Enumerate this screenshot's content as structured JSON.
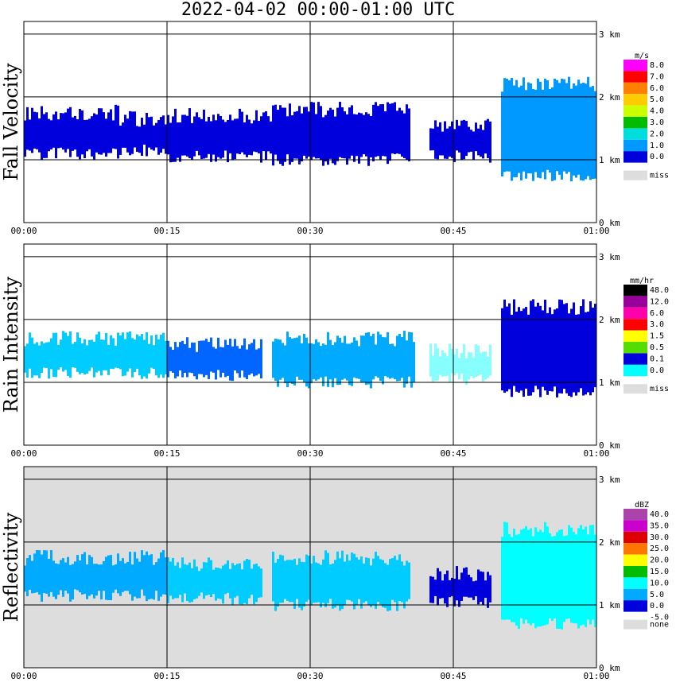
{
  "title": "2022-04-02   00:00-01:00 UTC",
  "chart_data": [
    {
      "type": "heatmap",
      "ylabel": "Fall Velocity",
      "xticks": [
        "00:00",
        "00:15",
        "00:30",
        "00:45",
        "01:00"
      ],
      "yticks": [
        "0 km",
        "1 km",
        "2 km",
        "3 km"
      ],
      "ylim": [
        0,
        3.2
      ],
      "xlim": [
        0,
        60
      ],
      "background": "#ffffff",
      "colorbar": {
        "unit": "m/s",
        "levels": [
          "8.0",
          "7.0",
          "6.0",
          "5.0",
          "4.0",
          "3.0",
          "2.0",
          "1.0",
          "0.0"
        ],
        "colors": [
          "#ff00ff",
          "#ff0000",
          "#ff7f00",
          "#ffcc00",
          "#ccff00",
          "#00bb00",
          "#00dddd",
          "#0099ff",
          "#0000dd"
        ],
        "miss_label": "miss"
      },
      "echo_bands": [
        {
          "t0": 0,
          "t1": 10,
          "zlo": 1.1,
          "zhi": 1.75,
          "color": "#0000dd"
        },
        {
          "t0": 10,
          "t1": 15,
          "zlo": 1.15,
          "zhi": 1.65,
          "color": "#0000dd"
        },
        {
          "t0": 15,
          "t1": 26,
          "zlo": 1.05,
          "zhi": 1.7,
          "color": "#0000dd"
        },
        {
          "t0": 26,
          "t1": 40.5,
          "zlo": 1.0,
          "zhi": 1.8,
          "color": "#0000dd"
        },
        {
          "t0": 42.5,
          "t1": 49,
          "zlo": 1.05,
          "zhi": 1.55,
          "color": "#0000dd"
        },
        {
          "t0": 50,
          "t1": 60,
          "zlo": 0.75,
          "zhi": 2.2,
          "color": "#0099ff"
        }
      ]
    },
    {
      "type": "heatmap",
      "ylabel": "Rain Intensity",
      "xticks": [
        "00:00",
        "00:15",
        "00:30",
        "00:45",
        "01:00"
      ],
      "yticks": [
        "0 km",
        "1 km",
        "2 km",
        "3 km"
      ],
      "ylim": [
        0,
        3.2
      ],
      "xlim": [
        0,
        60
      ],
      "background": "#ffffff",
      "colorbar": {
        "unit": "mm/hr",
        "levels": [
          "48.0",
          "12.0",
          "6.0",
          "3.0",
          "1.5",
          "0.5",
          "0.1",
          "0.0"
        ],
        "colors": [
          "#000000",
          "#990099",
          "#ff00aa",
          "#ff0000",
          "#ffff00",
          "#55dd00",
          "#0000dd",
          "#00ffff"
        ],
        "miss_label": "miss"
      },
      "echo_bands": [
        {
          "t0": 0,
          "t1": 15,
          "zlo": 1.15,
          "zhi": 1.7,
          "color": "#00ccff"
        },
        {
          "t0": 15,
          "t1": 25,
          "zlo": 1.1,
          "zhi": 1.6,
          "color": "#0066ff"
        },
        {
          "t0": 26,
          "t1": 41,
          "zlo": 1.0,
          "zhi": 1.7,
          "color": "#00aaff"
        },
        {
          "t0": 42.5,
          "t1": 49,
          "zlo": 1.05,
          "zhi": 1.5,
          "color": "#88ffff"
        },
        {
          "t0": 50,
          "t1": 60,
          "zlo": 0.85,
          "zhi": 2.2,
          "color": "#0000dd"
        }
      ]
    },
    {
      "type": "heatmap",
      "ylabel": "Reflectivity",
      "xticks": [
        "00:00",
        "00:15",
        "00:30",
        "00:45",
        "01:00"
      ],
      "yticks": [
        "0 km",
        "1 km",
        "2 km",
        "3 km"
      ],
      "ylim": [
        0,
        3.2
      ],
      "xlim": [
        0,
        60
      ],
      "background": "#dddddd",
      "colorbar": {
        "unit": "dBZ",
        "levels": [
          "40.0",
          "35.0",
          "30.0",
          "25.0",
          "20.0",
          "15.0",
          "10.0",
          "5.0",
          "0.0",
          "-5.0"
        ],
        "colors": [
          "#aa44aa",
          "#cc00cc",
          "#dd0000",
          "#ff7700",
          "#ffff00",
          "#00bb00",
          "#00ffff",
          "#00aaff",
          "#0000dd"
        ],
        "miss_label": "none"
      },
      "echo_bands": [
        {
          "t0": 0,
          "t1": 15,
          "zlo": 1.15,
          "zhi": 1.75,
          "color": "#00aaff"
        },
        {
          "t0": 15,
          "t1": 25,
          "zlo": 1.1,
          "zhi": 1.65,
          "color": "#00ccff"
        },
        {
          "t0": 26,
          "t1": 40.5,
          "zlo": 1.0,
          "zhi": 1.75,
          "color": "#00ccff"
        },
        {
          "t0": 42.5,
          "t1": 49,
          "zlo": 1.05,
          "zhi": 1.5,
          "color": "#0000dd"
        },
        {
          "t0": 50,
          "t1": 60,
          "zlo": 0.7,
          "zhi": 2.2,
          "color": "#00ffff"
        }
      ]
    }
  ]
}
